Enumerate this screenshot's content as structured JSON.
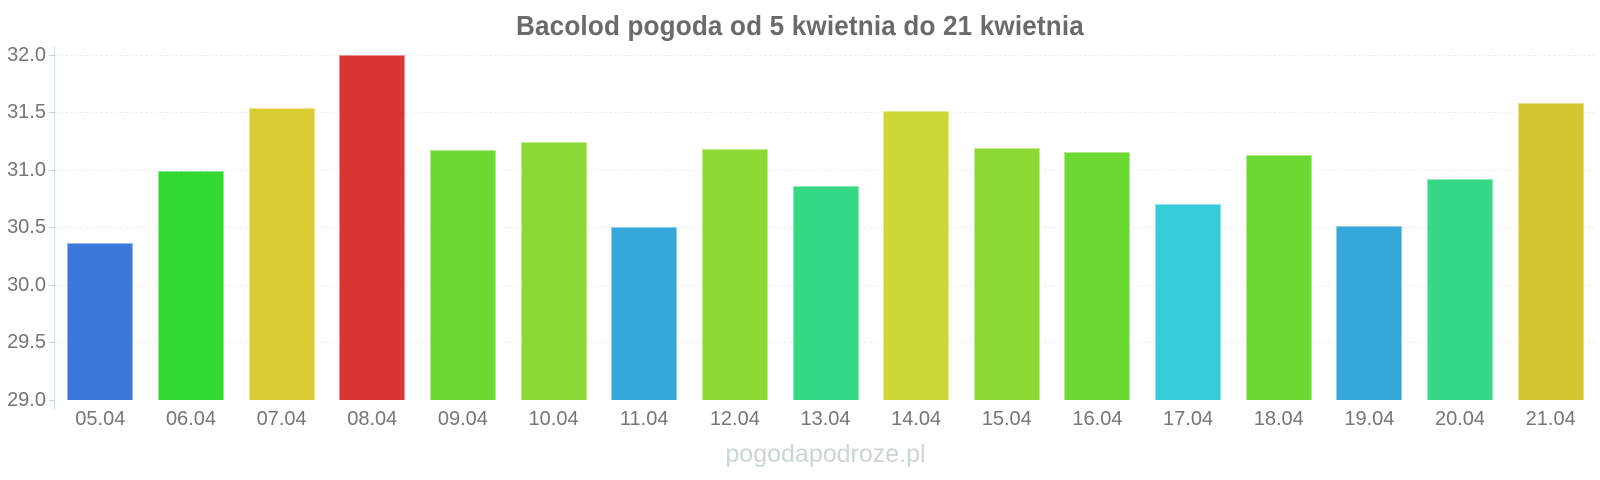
{
  "watermark": "pogodapodroze.pl",
  "chart_data": {
    "type": "bar",
    "title": "Bacolod pogoda od 5 kwietnia do 21 kwietnia",
    "categories": [
      "05.04",
      "06.04",
      "07.04",
      "08.04",
      "09.04",
      "10.04",
      "11.04",
      "12.04",
      "13.04",
      "14.04",
      "15.04",
      "16.04",
      "17.04",
      "18.04",
      "19.04",
      "20.04",
      "21.04"
    ],
    "values": [
      30.36,
      30.99,
      31.54,
      32.0,
      31.17,
      31.24,
      30.5,
      31.18,
      30.86,
      31.51,
      31.19,
      31.15,
      30.7,
      31.13,
      30.51,
      30.92,
      31.58
    ],
    "bar_colors": [
      "#3b78dc",
      "#33d933",
      "#d9cc35",
      "#d93535",
      "#6cd932",
      "#8cd935",
      "#35a8d9",
      "#8cd935",
      "#35d985",
      "#ccd935",
      "#8cd935",
      "#6cd932",
      "#36ccd9",
      "#6cd932",
      "#35a8d9",
      "#35d985",
      "#d5c530"
    ],
    "xlabel": "",
    "ylabel": "",
    "ylim": [
      29.0,
      32.0
    ],
    "yticks": [
      "32.0",
      "31.5",
      "31.0",
      "30.5",
      "30.0",
      "29.5",
      "29.0"
    ],
    "grid": true,
    "legend": false,
    "colors": {
      "title": "#6a6a6a",
      "axis_labels": "#757575",
      "axis_line": "#cfe2d9",
      "gridline": "#f0f0f0",
      "watermark": "#c9d6d1",
      "background": "#ffffff"
    }
  }
}
